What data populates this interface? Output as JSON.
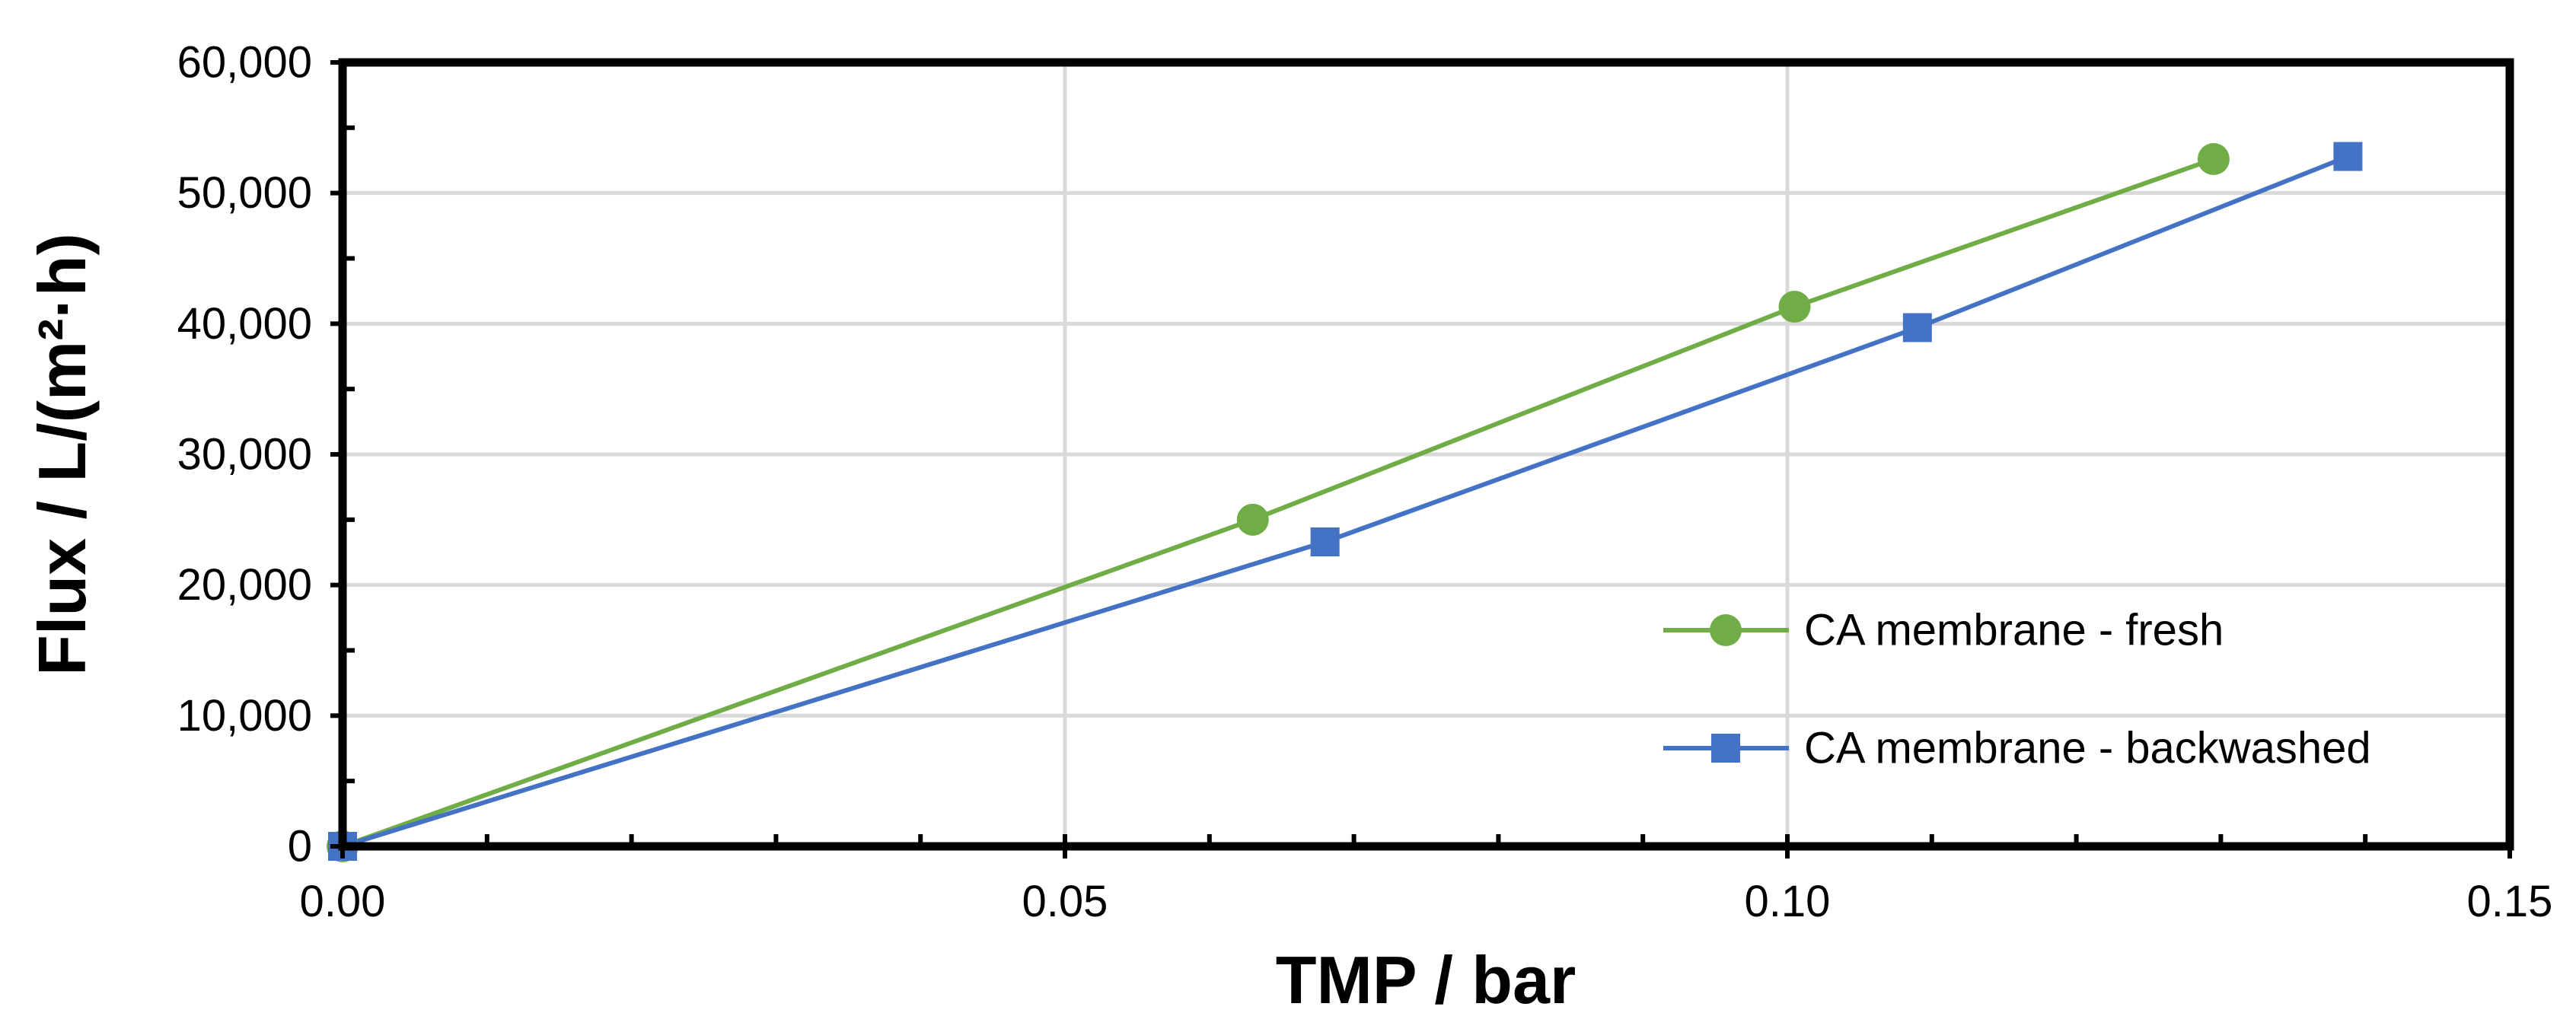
{
  "chart_data": {
    "type": "line",
    "xlabel": "TMP / bar",
    "ylabel": "Flux / L/(m²·h)",
    "xlim": [
      0,
      0.15
    ],
    "ylim": [
      0,
      60000
    ],
    "x_ticks": [
      0,
      0.05,
      0.1,
      0.15
    ],
    "x_tick_labels": [
      "0.00",
      "0.05",
      "0.10",
      "0.15"
    ],
    "y_ticks": [
      0,
      10000,
      20000,
      30000,
      40000,
      50000,
      60000
    ],
    "y_tick_labels": [
      "0",
      "10,000",
      "20,000",
      "30,000",
      "40,000",
      "50,000",
      "60,000"
    ],
    "grid": true,
    "legend_position": "bottom-right",
    "series": [
      {
        "name": "CA membrane - fresh",
        "color": "#70AD47",
        "marker": "circle",
        "x": [
          0.0,
          0.063,
          0.1005,
          0.1295
        ],
        "y": [
          0,
          25000,
          41300,
          52600
        ]
      },
      {
        "name": "CA membrane - backwashed",
        "color": "#4472C4",
        "marker": "square",
        "x": [
          0.0,
          0.068,
          0.109,
          0.1388
        ],
        "y": [
          0,
          23300,
          39700,
          52800
        ]
      }
    ]
  }
}
